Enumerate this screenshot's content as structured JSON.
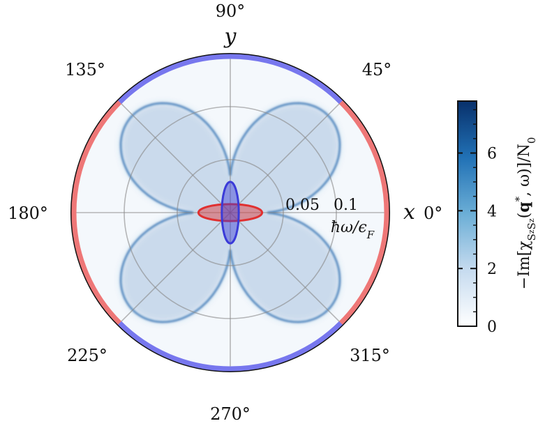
{
  "chart_data": {
    "type": "polar-heatmap",
    "angle_ticks": [
      {
        "angle_deg": 0,
        "label": "0°"
      },
      {
        "angle_deg": 45,
        "label": "45°"
      },
      {
        "angle_deg": 90,
        "label": "90°"
      },
      {
        "angle_deg": 135,
        "label": "135°"
      },
      {
        "angle_deg": 180,
        "label": "180°"
      },
      {
        "angle_deg": 225,
        "label": "225°"
      },
      {
        "angle_deg": 270,
        "label": "270°"
      },
      {
        "angle_deg": 315,
        "label": "315°"
      }
    ],
    "x_axis_letter": "x",
    "y_axis_letter": "y",
    "radial_axis": {
      "label": "ħω/ϵ_F",
      "rmax": 0.15,
      "gridlines": [
        0.05,
        0.1,
        0.15
      ],
      "tick_labels": [
        {
          "value": 0.05,
          "label": "0.05"
        },
        {
          "value": 0.1,
          "label": "0.1"
        }
      ]
    },
    "boundary_arcs": [
      {
        "from_deg": -45,
        "to_deg": 45,
        "color": "#ee7777"
      },
      {
        "from_deg": 45,
        "to_deg": 135,
        "color": "#7777ee"
      },
      {
        "from_deg": 135,
        "to_deg": 225,
        "color": "#ee7777"
      },
      {
        "from_deg": 225,
        "to_deg": 315,
        "color": "#7777ee"
      }
    ],
    "ellipses": [
      {
        "name": "red",
        "semi_axis_x": 0.03,
        "semi_axis_y": 0.008,
        "color": "#e03030"
      },
      {
        "name": "blue",
        "semi_axis_x": 0.008,
        "semi_axis_y": 0.029,
        "color": "#3b3bd8"
      }
    ],
    "heatmap_feature": {
      "shape": "four-lobed",
      "min_radius": 0.035,
      "max_radius_at_diagonals": 0.13,
      "color": "#2f6fb0"
    },
    "colorbar": {
      "min": 0,
      "max": 7.8,
      "ticks": [
        0,
        2,
        4,
        6
      ],
      "tick_labels": [
        "0",
        "2",
        "4",
        "6"
      ],
      "label": "−Im[χ_{S_z S_z}(q*, ω)]/N₀",
      "colormap": [
        "#ffffff",
        "#c6dbef",
        "#6baed6",
        "#2171b5",
        "#08306b"
      ]
    }
  }
}
